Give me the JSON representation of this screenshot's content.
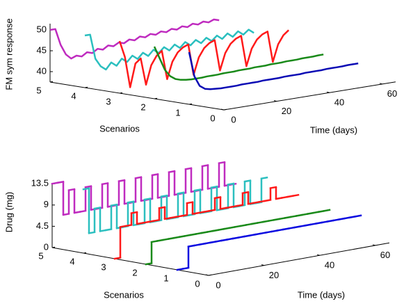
{
  "chart_data": [
    {
      "type": "line3d",
      "step": false,
      "zlabel": "FM sym response",
      "xlabel": "Time (days)",
      "ylabel": "Scenarios",
      "xlim": [
        0,
        65
      ],
      "xticks": [
        0,
        20,
        40,
        60
      ],
      "ylim": [
        0,
        5
      ],
      "yticks": [
        0,
        1,
        2,
        3,
        4,
        5
      ],
      "zlim": [
        37.5,
        51.5
      ],
      "zticks": [
        40,
        45,
        50
      ],
      "x": [
        0,
        2,
        4,
        6,
        8,
        10,
        12,
        14,
        16,
        18,
        20,
        22,
        24,
        26,
        28,
        30,
        32,
        34,
        36,
        38,
        40,
        42,
        44,
        46,
        48,
        50,
        52,
        54,
        56,
        58,
        60,
        62,
        64
      ],
      "series": [
        {
          "scenario": 1,
          "color": "#0a0ab4",
          "values": [
            50,
            44,
            41.5,
            40.6,
            40.3,
            40.2,
            40.1,
            40.1,
            40.1,
            40.1,
            40.2,
            40.2,
            40.2,
            40.2,
            40.3,
            40.3,
            40.3,
            40.3,
            40.4,
            40.4,
            40.4,
            40.4,
            40.5,
            40.5,
            40.5,
            40.5,
            40.6,
            40.6,
            40.6,
            40.6,
            40.7,
            40.7,
            40.7
          ]
        },
        {
          "scenario": 2,
          "color": "#1a8a1a",
          "values": [
            50,
            47,
            44,
            42.3,
            41.4,
            41,
            40.8,
            40.7,
            40.7,
            40.7,
            40.8,
            40.8,
            40.8,
            40.9,
            40.9,
            40.9,
            41,
            41,
            41,
            41.1,
            41.1,
            41.1,
            41.2,
            41.2,
            41.2,
            41.3,
            41.3,
            41.3,
            41.4,
            41.4,
            41.4,
            41.5,
            41.5
          ]
        },
        {
          "scenario": 3,
          "color": "#ff1a1a",
          "values": [
            50,
            46,
            38.5,
            44,
            45,
            38.5,
            43,
            45,
            46,
            39,
            43,
            45,
            46,
            46.5,
            39,
            43,
            45,
            46,
            46.5,
            39,
            43,
            45,
            46,
            46.5,
            39,
            43,
            45,
            46,
            46.5,
            39,
            43,
            45,
            46
          ]
        },
        {
          "scenario": 4,
          "color": "#2bbfbf",
          "values": [
            50,
            50,
            44,
            42,
            41,
            42.5,
            41.5,
            43,
            42,
            43.3,
            42.3,
            43.6,
            42.6,
            43.9,
            42.9,
            44.1,
            43.1,
            44.3,
            43.3,
            44.5,
            43.5,
            44.6,
            43.6,
            44.7,
            43.7,
            44.8,
            43.8,
            44.9,
            43.9,
            45,
            44,
            45,
            44
          ]
        },
        {
          "scenario": 5,
          "color": "#bf2bbf",
          "values": [
            50,
            50,
            46,
            43.5,
            42.3,
            42.8,
            42.4,
            43.2,
            42.8,
            43.6,
            43.2,
            44,
            43.6,
            44.3,
            43.9,
            44.6,
            44.2,
            44.9,
            44.5,
            45.1,
            44.7,
            45.3,
            44.9,
            45.5,
            45.1,
            45.7,
            45.3,
            45.9,
            45.5,
            46,
            45.6,
            46.1,
            45.7
          ]
        }
      ]
    },
    {
      "type": "line3d",
      "step": true,
      "zlabel": "Drug (mg)",
      "xlabel": "Time (days)",
      "ylabel": "Scenarios",
      "xlim": [
        0,
        65
      ],
      "xticks": [
        0,
        20,
        40,
        60
      ],
      "ylim": [
        0,
        5
      ],
      "yticks": [
        0,
        1,
        2,
        3,
        4,
        5
      ],
      "zlim": [
        0,
        13.5
      ],
      "zticks": [
        0,
        4.5,
        9,
        13.5
      ],
      "x": [
        0,
        2,
        4,
        6,
        8,
        10,
        12,
        14,
        16,
        18,
        20,
        22,
        24,
        26,
        28,
        30,
        32,
        34,
        36,
        38,
        40,
        42,
        44,
        46,
        48,
        50,
        52,
        54,
        56,
        58,
        60,
        62,
        64
      ],
      "series": [
        {
          "scenario": 1,
          "color": "#0a0ae0",
          "values": [
            0,
            0,
            4.5,
            4.5,
            4.5,
            4.5,
            4.5,
            4.5,
            4.5,
            4.5,
            4.5,
            4.5,
            4.5,
            4.5,
            4.5,
            4.5,
            4.5,
            4.5,
            4.5,
            4.5,
            4.5,
            4.5,
            4.5,
            4.5,
            4.5,
            4.5,
            4.5,
            4.5,
            4.5,
            4.5,
            4.5,
            4.5,
            4.5
          ]
        },
        {
          "scenario": 2,
          "color": "#1a8a1a",
          "values": [
            0,
            4.5,
            4.5,
            4.5,
            4.5,
            4.5,
            4.5,
            4.5,
            4.5,
            4.5,
            4.5,
            4.5,
            4.5,
            4.5,
            4.5,
            4.5,
            4.5,
            4.5,
            4.5,
            4.5,
            4.5,
            4.5,
            4.5,
            4.5,
            4.5,
            4.5,
            4.5,
            4.5,
            4.5,
            4.5,
            4.5,
            4.5,
            4.5
          ]
        },
        {
          "scenario": 3,
          "color": "#ff1a1a",
          "values": [
            0,
            6.5,
            6.5,
            9,
            6.5,
            6.5,
            6.5,
            6.5,
            9,
            6.5,
            6.5,
            6.5,
            6.5,
            9,
            6.5,
            6.5,
            6.5,
            6.5,
            9,
            6.5,
            6.5,
            6.5,
            6.5,
            9,
            6.5,
            6.5,
            6.5,
            6.5,
            9,
            6.5,
            6.5,
            6.5,
            6.5
          ]
        },
        {
          "scenario": 4,
          "color": "#2bbfbf",
          "values": [
            13.5,
            4,
            9,
            4,
            4,
            9,
            4,
            4,
            9,
            4,
            4,
            9,
            4,
            4,
            9,
            4,
            4,
            9,
            4,
            4,
            9,
            4,
            4,
            9,
            4,
            4,
            9,
            4,
            4,
            9,
            4,
            4,
            9
          ]
        },
        {
          "scenario": 5,
          "color": "#bf2bbf",
          "values": [
            13.5,
            13.5,
            6.5,
            11.5,
            6.5,
            6.5,
            11.5,
            6.5,
            6.5,
            11.5,
            6.5,
            6.5,
            11.5,
            6.5,
            6.5,
            11.5,
            6.5,
            6.5,
            11.5,
            6.5,
            6.5,
            11.5,
            6.5,
            6.5,
            11.5,
            6.5,
            6.5,
            11.5,
            6.5,
            6.5,
            11.5,
            6.5,
            6.5
          ]
        }
      ]
    }
  ]
}
